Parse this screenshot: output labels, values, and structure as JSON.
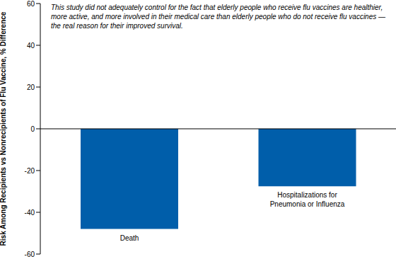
{
  "chart_data": {
    "type": "bar",
    "annotation": "This study did not adequately control for the fact that elderly people who receive flu vaccines are healthier, more active, and more involved in their medical care than elderly people who do not receive flu vaccines — the real reason for their improved survival.",
    "y_label": "Risk Among Recipients vs Nonrecipients of Flu Vaccine, % Difference",
    "categories": [
      "Death",
      "Hospitalizations for Pneumonia or Influenza"
    ],
    "values": [
      -48,
      -27.5
    ],
    "color": "#005eaa",
    "ylim": [
      -60,
      60
    ],
    "yticks": [
      -60,
      -40,
      -20,
      0,
      20,
      40,
      60
    ],
    "grid": false
  }
}
